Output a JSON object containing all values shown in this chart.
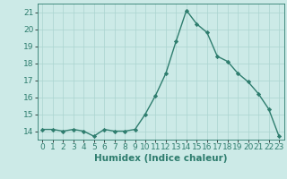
{
  "x": [
    0,
    1,
    2,
    3,
    4,
    5,
    6,
    7,
    8,
    9,
    10,
    11,
    12,
    13,
    14,
    15,
    16,
    17,
    18,
    19,
    20,
    21,
    22,
    23
  ],
  "y": [
    14.1,
    14.1,
    14.0,
    14.1,
    14.0,
    13.7,
    14.1,
    14.0,
    14.0,
    14.1,
    15.0,
    16.1,
    17.4,
    19.3,
    21.1,
    20.3,
    19.8,
    18.4,
    18.1,
    17.4,
    16.9,
    16.2,
    15.3,
    13.7
  ],
  "line_color": "#2e7d6e",
  "marker": "D",
  "markersize": 2.2,
  "linewidth": 1.0,
  "bg_color": "#cceae7",
  "grid_color": "#aad4d0",
  "xlabel": "Humidex (Indice chaleur)",
  "xlabel_fontsize": 7.5,
  "tick_fontsize": 6.5,
  "ylim": [
    13.5,
    21.5
  ],
  "xlim": [
    -0.5,
    23.5
  ],
  "yticks": [
    14,
    15,
    16,
    17,
    18,
    19,
    20,
    21
  ],
  "xticks": [
    0,
    1,
    2,
    3,
    4,
    5,
    6,
    7,
    8,
    9,
    10,
    11,
    12,
    13,
    14,
    15,
    16,
    17,
    18,
    19,
    20,
    21,
    22,
    23
  ]
}
